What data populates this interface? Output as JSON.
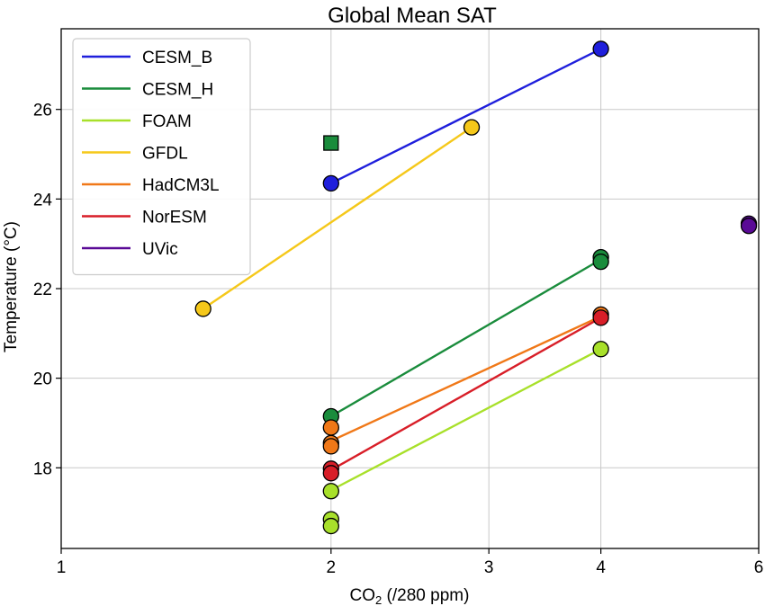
{
  "chart_data": {
    "type": "scatter",
    "title": "Global Mean SAT",
    "xlabel_main": "CO",
    "xlabel_sub": "2",
    "xlabel_rest": " (/280 ppm)",
    "ylabel": "Temperature (°C)",
    "xscale": "log",
    "xlim": [
      1,
      6
    ],
    "ylim": [
      16.2,
      27.8
    ],
    "xticks": [
      1,
      2,
      3,
      4,
      6
    ],
    "xtick_labels": [
      "1",
      "2",
      "3",
      "4",
      "6"
    ],
    "yticks": [
      18,
      20,
      22,
      24,
      26
    ],
    "ytick_labels": [
      "18",
      "20",
      "22",
      "24",
      "26"
    ],
    "grid": true,
    "legend_position": "top-left",
    "series": [
      {
        "name": "CESM_B",
        "color": "#1f1fdc",
        "line": [
          [
            2,
            24.35
          ],
          [
            4,
            27.35
          ]
        ],
        "points": [
          {
            "x": 2,
            "y": 24.35,
            "shape": "circle"
          },
          {
            "x": 4,
            "y": 27.35,
            "shape": "circle"
          }
        ]
      },
      {
        "name": "CESM_H",
        "color": "#1a8c3c",
        "line": [
          [
            2,
            19.15
          ],
          [
            4,
            22.65
          ]
        ],
        "points": [
          {
            "x": 2,
            "y": 25.25,
            "shape": "square"
          },
          {
            "x": 2,
            "y": 19.15,
            "shape": "circle"
          },
          {
            "x": 4,
            "y": 22.7,
            "shape": "circle"
          },
          {
            "x": 4,
            "y": 22.6,
            "shape": "circle"
          }
        ]
      },
      {
        "name": "FOAM",
        "color": "#a8e02a",
        "line": [
          [
            2,
            17.5
          ],
          [
            4,
            20.65
          ]
        ],
        "points": [
          {
            "x": 2,
            "y": 16.85,
            "shape": "circle"
          },
          {
            "x": 2,
            "y": 16.7,
            "shape": "circle"
          },
          {
            "x": 2,
            "y": 17.48,
            "shape": "circle"
          },
          {
            "x": 4,
            "y": 20.65,
            "shape": "circle"
          }
        ]
      },
      {
        "name": "GFDL",
        "color": "#f5c81a",
        "line": [
          [
            1.44,
            21.55
          ],
          [
            2.87,
            25.6
          ]
        ],
        "points": [
          {
            "x": 1.44,
            "y": 21.55,
            "shape": "circle"
          },
          {
            "x": 2.87,
            "y": 25.6,
            "shape": "circle"
          }
        ]
      },
      {
        "name": "HadCM3L",
        "color": "#f07818",
        "line": [
          [
            2,
            18.6
          ],
          [
            4,
            21.38
          ]
        ],
        "points": [
          {
            "x": 2,
            "y": 18.9,
            "shape": "circle"
          },
          {
            "x": 2,
            "y": 18.55,
            "shape": "circle"
          },
          {
            "x": 2,
            "y": 18.48,
            "shape": "circle"
          },
          {
            "x": 4,
            "y": 21.42,
            "shape": "circle"
          }
        ]
      },
      {
        "name": "NorESM",
        "color": "#d81e28",
        "line": [
          [
            2,
            17.95
          ],
          [
            4,
            21.35
          ]
        ],
        "points": [
          {
            "x": 2,
            "y": 17.98,
            "shape": "circle"
          },
          {
            "x": 2,
            "y": 17.88,
            "shape": "circle"
          },
          {
            "x": 4,
            "y": 21.35,
            "shape": "circle"
          }
        ]
      },
      {
        "name": "UVic",
        "color": "#5a0a96",
        "line": [],
        "points": [
          {
            "x": 5.85,
            "y": 23.45,
            "shape": "circle"
          },
          {
            "x": 5.85,
            "y": 23.4,
            "shape": "circle"
          }
        ]
      }
    ]
  }
}
